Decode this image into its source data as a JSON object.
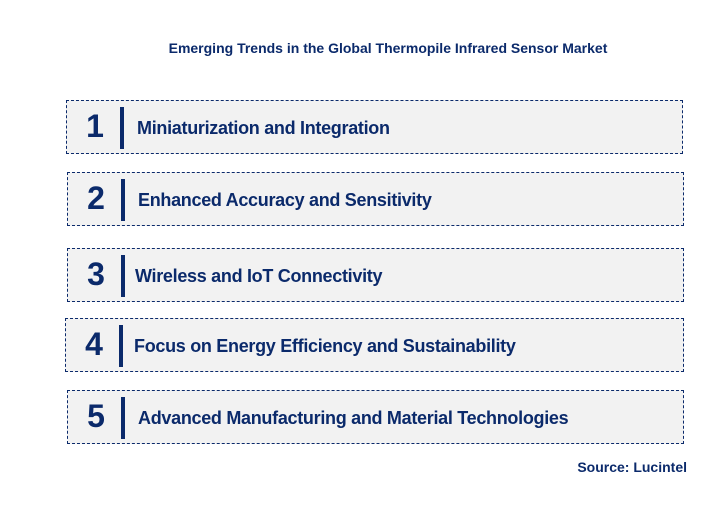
{
  "title": "Emerging Trends in the Global Thermopile Infrared Sensor Market",
  "items": [
    {
      "number": "1",
      "label": "Miniaturization and Integration"
    },
    {
      "number": "2",
      "label": "Enhanced Accuracy and Sensitivity"
    },
    {
      "number": "3",
      "label": "Wireless and IoT Connectivity"
    },
    {
      "number": "4",
      "label": "Focus on Energy Efficiency and Sustainability"
    },
    {
      "number": "5",
      "label": "Advanced Manufacturing and Material Technologies"
    }
  ],
  "source": "Source: Lucintel",
  "colors": {
    "primary": "#0b2a6b",
    "box_bg": "#f2f2f2"
  }
}
